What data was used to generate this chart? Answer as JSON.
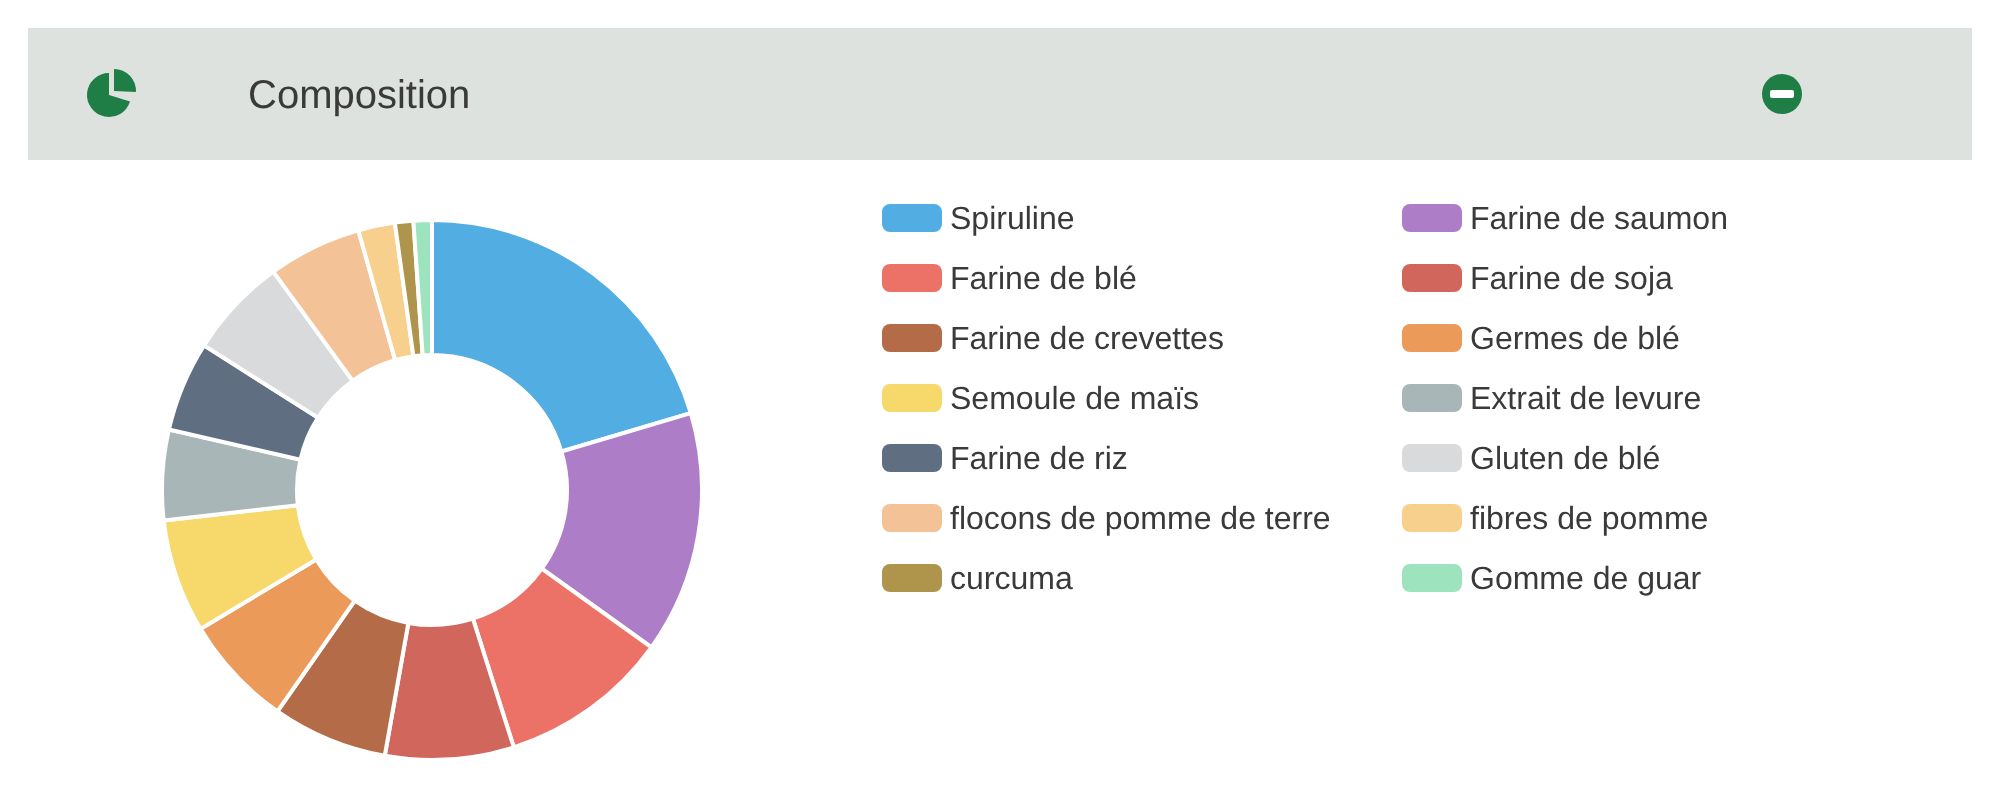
{
  "chart_data": {
    "type": "donut",
    "title": "Composition",
    "categories": [
      "Spiruline",
      "Farine de saumon",
      "Farine de blé",
      "Farine de soja",
      "Farine de crevettes",
      "Germes de blé",
      "Semoule de maïs",
      "Extrait de levure",
      "Farine de riz",
      "Gluten de blé",
      "flocons de pomme de terre",
      "fibres de pomme",
      "curcuma",
      "Gomme de guar"
    ],
    "values": [
      20.4,
      14.5,
      10.2,
      7.7,
      6.9,
      6.7,
      6.8,
      5.4,
      5.4,
      6.0,
      5.6,
      2.2,
      1.1,
      1.1
    ],
    "colors": [
      "#52ade3",
      "#ad7dc8",
      "#ec7268",
      "#d0665c",
      "#b46b48",
      "#ec9a5a",
      "#f6d86b",
      "#a9b6b7",
      "#5f6e80",
      "#d8dadb",
      "#f3c297",
      "#f7d08d",
      "#ae954b",
      "#9de3bd"
    ],
    "legend": "right"
  }
}
